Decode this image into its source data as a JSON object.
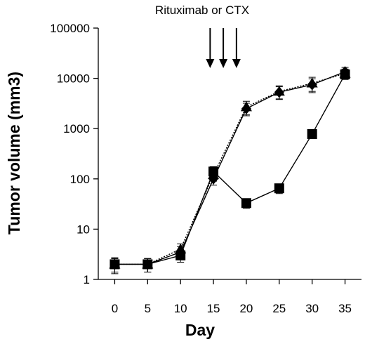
{
  "chart_data": {
    "type": "line",
    "xlabel": "Day",
    "ylabel": "Tumor volume (mm3)",
    "yscale": "log",
    "ylim": [
      1,
      100000
    ],
    "xlim": [
      -2.5,
      37.5
    ],
    "x_ticks": [
      0,
      5,
      10,
      15,
      20,
      25,
      30,
      35
    ],
    "y_ticks": [
      1,
      10,
      100,
      1000,
      10000,
      100000
    ],
    "y_tick_labels": [
      "1",
      "10",
      "100",
      "1000",
      "10000",
      "100000"
    ],
    "grid": false,
    "legend": "none",
    "series": [
      {
        "marker": "diamond",
        "line_style": "solid",
        "x": [
          0,
          5,
          10,
          15,
          20,
          25,
          30,
          35
        ],
        "y": [
          2,
          2,
          3.5,
          100,
          2500,
          5300,
          7500,
          13500
        ],
        "err": [
          0.6,
          0.6,
          1.0,
          25,
          700,
          1500,
          2300,
          3000
        ]
      },
      {
        "marker": "triangle",
        "line_style": "dotted",
        "x": [
          0,
          5,
          10,
          15,
          20,
          25,
          30,
          35
        ],
        "y": [
          2,
          2,
          4,
          120,
          2700,
          5500,
          8000,
          12500
        ],
        "err": [
          0.6,
          0.6,
          1.1,
          30,
          800,
          1600,
          2500,
          2800
        ]
      },
      {
        "marker": "square",
        "line_style": "solid",
        "x": [
          0,
          5,
          10,
          15,
          20,
          25,
          30,
          35
        ],
        "y": [
          2,
          2,
          3,
          140,
          33,
          65,
          780,
          12000
        ],
        "err": [
          0.7,
          0.6,
          0.8,
          35,
          7,
          14,
          150,
          2500
        ]
      }
    ],
    "annotations": [
      {
        "text": "Rituximab or CTX",
        "arrow_days": [
          14.5,
          16.5,
          18.5
        ]
      }
    ]
  }
}
